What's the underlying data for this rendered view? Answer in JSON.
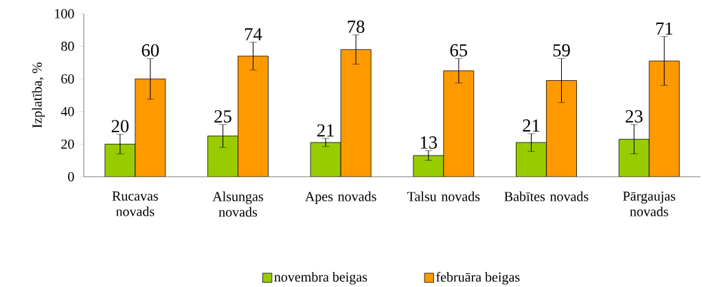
{
  "chart_data": {
    "type": "bar",
    "ylabel": "Izplatība, %",
    "categories": [
      "Rucavas novads",
      "Alsungas novads",
      "Apes novads",
      "Talsu novads",
      "Babītes novads",
      "Pārgaujas novads"
    ],
    "series": [
      {
        "name": "novembra beigas",
        "color": "#99cc00",
        "values": [
          20,
          25,
          21,
          13,
          21,
          23
        ],
        "errors": [
          6,
          7,
          2.5,
          3,
          5.5,
          9
        ]
      },
      {
        "name": "februāra beigas",
        "color": "#ff9900",
        "values": [
          60,
          74,
          78,
          65,
          59,
          71
        ],
        "errors": [
          12.5,
          8.5,
          9,
          7.5,
          13.5,
          15
        ]
      }
    ],
    "ylim": [
      0,
      100
    ],
    "yticks": [
      0,
      20,
      40,
      60,
      80,
      100
    ],
    "data_labels": true,
    "legend": "bottom"
  }
}
